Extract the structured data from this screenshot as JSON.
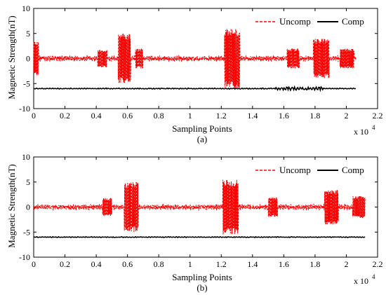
{
  "chart_data": [
    {
      "type": "line",
      "panel": "a",
      "caption": "(a)",
      "xlabel": "Sampling Points",
      "ylabel": "Magnetic Strength(nT)",
      "x_scale_base": "x 10",
      "x_scale_exp": "4",
      "xlim": [
        0,
        2.2
      ],
      "ylim": [
        -10,
        10
      ],
      "xticks": [
        "0",
        "0.2",
        "0.4",
        "0.6",
        "0.8",
        "1",
        "1.2",
        "1.4",
        "1.6",
        "1.8",
        "2",
        "2.2"
      ],
      "yticks": [
        "-10",
        "-5",
        "0",
        "5",
        "10"
      ],
      "legend_position": "top-right",
      "colors": {
        "Uncomp": "#ff0000",
        "Comp": "#000000"
      },
      "series": [
        {
          "name": "Uncomp",
          "style": "dashed",
          "x_range": [
            0,
            2.06
          ],
          "baseline": 0,
          "noise_amplitude": 0.7,
          "bursts": [
            {
              "x_start": 0.0,
              "x_end": 0.03,
              "amplitude": 3.5
            },
            {
              "x_start": 0.41,
              "x_end": 0.47,
              "amplitude": 1.8
            },
            {
              "x_start": 0.54,
              "x_end": 0.62,
              "amplitude": 5.0
            },
            {
              "x_start": 0.65,
              "x_end": 0.7,
              "amplitude": 2.0
            },
            {
              "x_start": 1.22,
              "x_end": 1.32,
              "amplitude": 6.0
            },
            {
              "x_start": 1.62,
              "x_end": 1.7,
              "amplitude": 2.0
            },
            {
              "x_start": 1.79,
              "x_end": 1.89,
              "amplitude": 4.0
            },
            {
              "x_start": 1.96,
              "x_end": 2.05,
              "amplitude": 2.0
            }
          ]
        },
        {
          "name": "Comp",
          "style": "solid",
          "x_range": [
            0,
            2.06
          ],
          "baseline": -6,
          "noise_amplitude": 0.12,
          "bursts": [
            {
              "x_start": 1.55,
              "x_end": 1.85,
              "amplitude": 0.35
            }
          ]
        }
      ]
    },
    {
      "type": "line",
      "panel": "b",
      "caption": "(b)",
      "xlabel": "Sampling Points",
      "ylabel": "Magnetic Strength(nT)",
      "x_scale_base": "x 10",
      "x_scale_exp": "4",
      "xlim": [
        0,
        2.2
      ],
      "ylim": [
        -10,
        10
      ],
      "xticks": [
        "0",
        "0.2",
        "0.4",
        "0.6",
        "0.8",
        "1",
        "1.2",
        "1.4",
        "1.6",
        "1.8",
        "2",
        "2.2"
      ],
      "yticks": [
        "-10",
        "-5",
        "0",
        "5",
        "10"
      ],
      "legend_position": "top-right",
      "colors": {
        "Uncomp": "#ff0000",
        "Comp": "#000000"
      },
      "series": [
        {
          "name": "Uncomp",
          "style": "dashed",
          "x_range": [
            0,
            2.12
          ],
          "baseline": 0,
          "noise_amplitude": 0.7,
          "bursts": [
            {
              "x_start": 0.44,
              "x_end": 0.5,
              "amplitude": 1.8
            },
            {
              "x_start": 0.58,
              "x_end": 0.67,
              "amplitude": 5.0
            },
            {
              "x_start": 1.21,
              "x_end": 1.31,
              "amplitude": 5.5
            },
            {
              "x_start": 1.5,
              "x_end": 1.56,
              "amplitude": 2.0
            },
            {
              "x_start": 1.86,
              "x_end": 1.95,
              "amplitude": 3.5
            },
            {
              "x_start": 2.04,
              "x_end": 2.12,
              "amplitude": 2.2
            }
          ]
        },
        {
          "name": "Comp",
          "style": "solid",
          "x_range": [
            0,
            2.12
          ],
          "baseline": -6,
          "noise_amplitude": 0.1,
          "bursts": []
        }
      ]
    }
  ]
}
